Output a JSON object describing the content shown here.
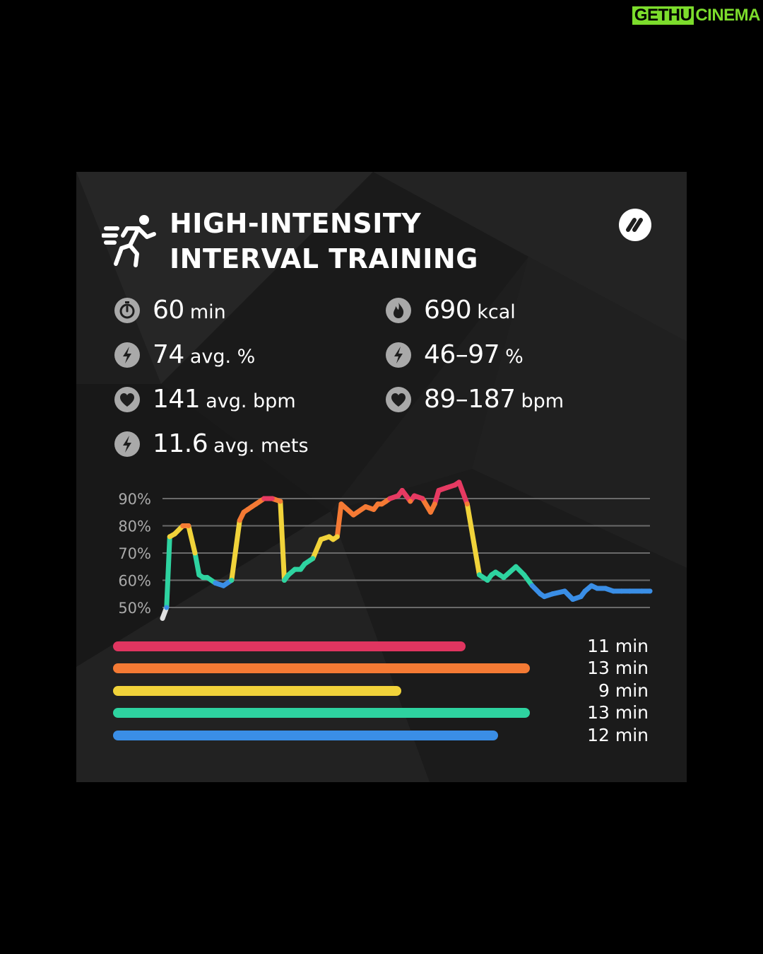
{
  "watermark": {
    "part1": "GETHU",
    "part2": "CINEMA"
  },
  "card": {
    "title_line1": "HIGH-INTENSITY",
    "title_line2": "INTERVAL TRAINING",
    "stats": [
      {
        "icon": "stopwatch-icon",
        "value": "60",
        "unit": "min"
      },
      {
        "icon": "flame-icon",
        "value": "690",
        "unit": "kcal"
      },
      {
        "icon": "bolt-icon",
        "value": "74",
        "unit": "avg. %"
      },
      {
        "icon": "bolt-icon",
        "value": "46–97",
        "unit": "%"
      },
      {
        "icon": "heart-icon",
        "value": "141",
        "unit": "avg. bpm"
      },
      {
        "icon": "heart-icon",
        "value": "89–187",
        "unit": "bpm"
      },
      {
        "icon": "bolt-icon",
        "value": "11.6",
        "unit": "avg. mets"
      }
    ]
  },
  "chart_data": [
    {
      "type": "line",
      "ylim": [
        46,
        97
      ],
      "ytick_labels": [
        "90%",
        "80%",
        "70%",
        "60%",
        "50%"
      ],
      "yticks": [
        90,
        80,
        70,
        60,
        50
      ],
      "grid": true,
      "x_range": [
        0,
        60
      ],
      "x_unit": "min",
      "x": [
        0,
        0.5,
        0.9,
        1.5,
        2.5,
        3.2,
        4.0,
        4.5,
        5.0,
        5.5,
        6.5,
        7.5,
        8.5,
        9.5,
        10.0,
        10.5,
        11.0,
        11.5,
        12.5,
        13.5,
        14.5,
        15.0,
        15.5,
        16.3,
        17.0,
        17.5,
        18.5,
        19.5,
        20.5,
        21.0,
        21.5,
        22.0,
        23.5,
        25.0,
        26.0,
        26.5,
        27.0,
        27.5,
        28.0,
        29.0,
        29.5,
        30.5,
        31.0,
        32.0,
        33.0,
        33.5,
        34.0,
        35.0,
        36.0,
        36.5,
        37.5,
        39.0,
        40.0,
        40.5,
        41.0,
        41.5,
        42.0,
        43.5,
        44.5,
        45.5,
        46.5,
        47.0,
        48.0,
        49.5,
        50.5,
        51.5,
        52.0,
        52.8,
        53.5,
        54.5,
        55.5,
        56.5,
        57.5,
        59.0,
        60.0
      ],
      "y": [
        46,
        50,
        76,
        77,
        80,
        80,
        70,
        62,
        61,
        61,
        59,
        58,
        60,
        82,
        85,
        86,
        87,
        88,
        90,
        90,
        89,
        60,
        62,
        64,
        64,
        66,
        68,
        75,
        76,
        75,
        76,
        88,
        84,
        87,
        86,
        88,
        88,
        89,
        90,
        91,
        93,
        89,
        91,
        90,
        85,
        88,
        93,
        94,
        95,
        96,
        88,
        62,
        60,
        62,
        63,
        62,
        61,
        65,
        62,
        58,
        55,
        54,
        55,
        56,
        53,
        54,
        56,
        58,
        57,
        57,
        56,
        56,
        56,
        56,
        56
      ],
      "line_colors": {
        "blue": "#3a8ee6",
        "green": "#2ed3a0",
        "yellow": "#f1d33a",
        "orange": "#f57a34",
        "red": "#e63a62"
      }
    },
    {
      "type": "bar",
      "orientation": "horizontal",
      "values": [
        11,
        13,
        9,
        13,
        12
      ],
      "labels": [
        "11 min",
        "13 min",
        "9 min",
        "13 min",
        "12 min"
      ],
      "colors": [
        "#e03560",
        "#f47a34",
        "#f1d33a",
        "#2ed3a0",
        "#3a8ee6"
      ]
    }
  ]
}
